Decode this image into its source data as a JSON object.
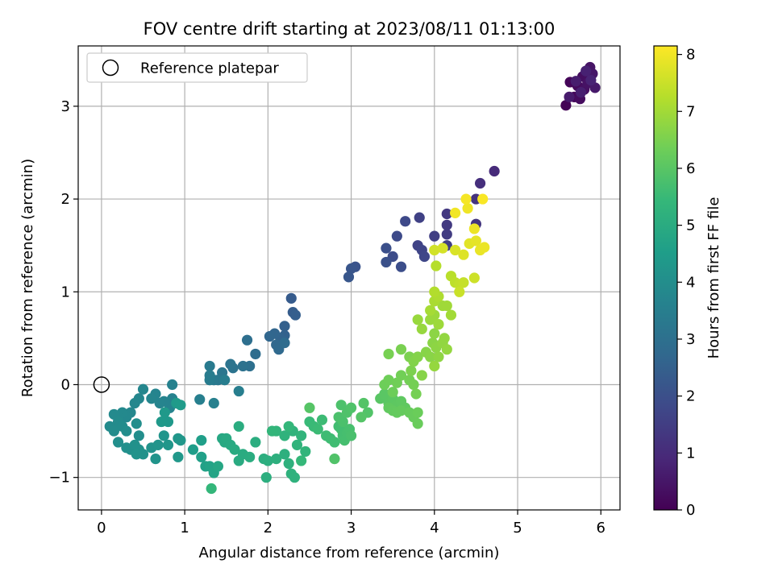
{
  "chart_data": {
    "type": "scatter",
    "title": "FOV centre drift starting at 2023/08/11 01:13:00",
    "xlabel": "Angular distance from reference (arcmin)",
    "ylabel": "Rotation from reference (arcmin)",
    "xlim": [
      -0.28,
      6.23
    ],
    "ylim": [
      -1.35,
      3.65
    ],
    "xticks": [
      0,
      1,
      2,
      3,
      4,
      5,
      6
    ],
    "xtick_labels": [
      "0",
      "1",
      "2",
      "3",
      "4",
      "5",
      "6"
    ],
    "yticks": [
      -1,
      0,
      1,
      2,
      3
    ],
    "ytick_labels": [
      "−1",
      "0",
      "1",
      "2",
      "3"
    ],
    "grid": true,
    "colormap": "viridis",
    "colorbar": {
      "label": "Hours from first FF file",
      "range": [
        0,
        8.15
      ],
      "ticks": [
        0,
        1,
        2,
        3,
        4,
        5,
        6,
        7,
        8
      ],
      "tick_labels": [
        "0",
        "1",
        "2",
        "3",
        "4",
        "5",
        "6",
        "7",
        "8"
      ]
    },
    "legend": {
      "placement": "top-left",
      "entries": [
        "Reference platepar"
      ]
    },
    "reference_point": {
      "x": 0,
      "y": 0
    },
    "points": [
      [
        5.58,
        3.01,
        0.05
      ],
      [
        5.63,
        3.26,
        0.1
      ],
      [
        5.68,
        3.1,
        0.15
      ],
      [
        5.72,
        3.22,
        0.2
      ],
      [
        5.75,
        3.08,
        0.25
      ],
      [
        5.78,
        3.32,
        0.3
      ],
      [
        5.8,
        3.18,
        0.35
      ],
      [
        5.84,
        3.25,
        0.4
      ],
      [
        5.87,
        3.42,
        0.45
      ],
      [
        5.9,
        3.35,
        0.5
      ],
      [
        5.93,
        3.2,
        0.55
      ],
      [
        5.62,
        3.1,
        0.6
      ],
      [
        5.7,
        3.27,
        0.65
      ],
      [
        5.76,
        3.15,
        0.7
      ],
      [
        5.82,
        3.38,
        0.75
      ],
      [
        5.88,
        3.28,
        0.8
      ],
      [
        4.72,
        2.3,
        1.0
      ],
      [
        4.55,
        2.17,
        1.1
      ],
      [
        4.5,
        2.0,
        1.2
      ],
      [
        4.5,
        1.73,
        1.3
      ],
      [
        4.15,
        1.84,
        1.35
      ],
      [
        4.15,
        1.72,
        1.4
      ],
      [
        4.15,
        1.62,
        1.45
      ],
      [
        4.15,
        1.5,
        1.5
      ],
      [
        4.0,
        1.6,
        1.55
      ],
      [
        3.82,
        1.8,
        1.6
      ],
      [
        3.8,
        1.5,
        1.65
      ],
      [
        3.85,
        1.45,
        1.7
      ],
      [
        3.88,
        1.38,
        1.75
      ],
      [
        3.65,
        1.76,
        1.8
      ],
      [
        3.55,
        1.6,
        1.85
      ],
      [
        3.5,
        1.38,
        1.9
      ],
      [
        3.6,
        1.27,
        1.95
      ],
      [
        3.42,
        1.47,
        2.0
      ],
      [
        3.42,
        1.32,
        2.05
      ],
      [
        3.05,
        1.27,
        2.1
      ],
      [
        3.0,
        1.25,
        2.15
      ],
      [
        2.97,
        1.16,
        2.2
      ],
      [
        2.28,
        0.93,
        2.35
      ],
      [
        2.3,
        0.78,
        2.4
      ],
      [
        2.33,
        0.75,
        2.45
      ],
      [
        2.2,
        0.63,
        2.5
      ],
      [
        2.2,
        0.53,
        2.55
      ],
      [
        2.15,
        0.5,
        2.6
      ],
      [
        2.08,
        0.55,
        2.65
      ],
      [
        2.02,
        0.52,
        2.7
      ],
      [
        2.1,
        0.43,
        2.75
      ],
      [
        2.13,
        0.38,
        2.8
      ],
      [
        2.2,
        0.45,
        2.85
      ],
      [
        1.85,
        0.33,
        2.9
      ],
      [
        1.75,
        0.48,
        2.95
      ],
      [
        1.78,
        0.2,
        3.0
      ],
      [
        1.7,
        0.2,
        3.05
      ],
      [
        1.58,
        0.18,
        3.1
      ],
      [
        1.55,
        0.22,
        3.15
      ],
      [
        1.45,
        0.13,
        3.2
      ],
      [
        1.4,
        0.05,
        3.25
      ],
      [
        1.35,
        0.05,
        3.3
      ],
      [
        1.3,
        0.2,
        3.35
      ],
      [
        1.3,
        0.1,
        3.4
      ],
      [
        1.3,
        0.05,
        3.42
      ],
      [
        1.48,
        0.05,
        3.45
      ],
      [
        1.65,
        -0.07,
        3.48
      ],
      [
        1.18,
        -0.16,
        3.52
      ],
      [
        1.35,
        -0.2,
        3.55
      ],
      [
        0.85,
        0.0,
        3.6
      ],
      [
        0.85,
        -0.15,
        3.62
      ],
      [
        0.82,
        -0.25,
        3.64
      ],
      [
        0.75,
        -0.18,
        3.66
      ],
      [
        0.7,
        -0.2,
        3.68
      ],
      [
        0.65,
        -0.1,
        3.7
      ],
      [
        0.6,
        -0.15,
        3.72
      ],
      [
        0.5,
        -0.05,
        3.74
      ],
      [
        0.45,
        -0.15,
        3.76
      ],
      [
        0.4,
        -0.2,
        3.78
      ],
      [
        0.35,
        -0.3,
        3.8
      ],
      [
        0.3,
        -0.35,
        3.82
      ],
      [
        0.25,
        -0.3,
        3.84
      ],
      [
        0.2,
        -0.35,
        3.86
      ],
      [
        0.15,
        -0.32,
        3.88
      ],
      [
        0.2,
        -0.4,
        3.9
      ],
      [
        0.1,
        -0.45,
        3.92
      ],
      [
        0.15,
        -0.5,
        3.94
      ],
      [
        0.25,
        -0.45,
        3.96
      ],
      [
        0.3,
        -0.5,
        3.98
      ],
      [
        0.42,
        -0.42,
        4.0
      ],
      [
        0.45,
        -0.55,
        4.02
      ],
      [
        0.2,
        -0.62,
        4.04
      ],
      [
        0.3,
        -0.68,
        4.06
      ],
      [
        0.35,
        -0.7,
        4.08
      ],
      [
        0.4,
        -0.65,
        4.1
      ],
      [
        0.45,
        -0.7,
        4.12
      ],
      [
        0.5,
        -0.75,
        4.14
      ],
      [
        0.42,
        -0.75,
        4.16
      ],
      [
        0.6,
        -0.68,
        4.18
      ],
      [
        0.68,
        -0.65,
        4.2
      ],
      [
        0.65,
        -0.8,
        4.22
      ],
      [
        0.75,
        -0.55,
        4.24
      ],
      [
        0.8,
        -0.65,
        4.26
      ],
      [
        0.92,
        -0.58,
        4.28
      ],
      [
        0.95,
        -0.6,
        4.3
      ],
      [
        0.92,
        -0.78,
        4.32
      ],
      [
        0.8,
        -0.4,
        4.34
      ],
      [
        0.72,
        -0.4,
        4.36
      ],
      [
        0.76,
        -0.3,
        4.38
      ],
      [
        0.9,
        -0.2,
        4.4
      ],
      [
        0.95,
        -0.22,
        4.42
      ],
      [
        1.1,
        -0.7,
        4.5
      ],
      [
        1.2,
        -0.6,
        4.55
      ],
      [
        1.2,
        -0.78,
        4.6
      ],
      [
        1.25,
        -0.88,
        4.65
      ],
      [
        1.3,
        -0.88,
        4.7
      ],
      [
        1.35,
        -0.95,
        4.75
      ],
      [
        1.4,
        -0.88,
        4.8
      ],
      [
        1.45,
        -0.58,
        4.85
      ],
      [
        1.48,
        -0.62,
        4.9
      ],
      [
        1.5,
        -0.58,
        4.92
      ],
      [
        1.55,
        -0.65,
        4.94
      ],
      [
        1.6,
        -0.7,
        4.96
      ],
      [
        1.65,
        -0.82,
        4.98
      ],
      [
        1.7,
        -0.75,
        5.0
      ],
      [
        1.78,
        -0.78,
        5.02
      ],
      [
        1.65,
        -0.45,
        5.04
      ],
      [
        1.85,
        -0.62,
        5.06
      ],
      [
        1.95,
        -0.8,
        5.08
      ],
      [
        2.0,
        -0.82,
        5.1
      ],
      [
        1.98,
        -1.0,
        5.12
      ],
      [
        2.1,
        -0.8,
        5.14
      ],
      [
        2.2,
        -0.75,
        5.16
      ],
      [
        2.25,
        -0.85,
        5.18
      ],
      [
        2.28,
        -0.96,
        5.2
      ],
      [
        2.32,
        -1.0,
        5.22
      ],
      [
        2.2,
        -0.55,
        5.24
      ],
      [
        2.3,
        -0.5,
        5.26
      ],
      [
        2.35,
        -0.65,
        5.28
      ],
      [
        2.4,
        -0.55,
        5.3
      ],
      [
        2.45,
        -0.72,
        5.32
      ],
      [
        2.1,
        -0.5,
        5.34
      ],
      [
        2.05,
        -0.5,
        5.36
      ],
      [
        2.25,
        -0.45,
        5.38
      ],
      [
        1.32,
        -1.12,
        5.4
      ],
      [
        2.4,
        -0.82,
        5.42
      ],
      [
        2.5,
        -0.4,
        5.5
      ],
      [
        2.55,
        -0.45,
        5.52
      ],
      [
        2.6,
        -0.48,
        5.54
      ],
      [
        2.65,
        -0.38,
        5.56
      ],
      [
        2.7,
        -0.55,
        5.58
      ],
      [
        2.75,
        -0.58,
        5.6
      ],
      [
        2.8,
        -0.62,
        5.62
      ],
      [
        2.85,
        -0.45,
        5.64
      ],
      [
        2.88,
        -0.48,
        5.66
      ],
      [
        2.9,
        -0.55,
        5.68
      ],
      [
        2.92,
        -0.6,
        5.7
      ],
      [
        2.95,
        -0.52,
        5.72
      ],
      [
        2.98,
        -0.48,
        5.74
      ],
      [
        3.0,
        -0.55,
        5.76
      ],
      [
        2.9,
        -0.4,
        5.78
      ],
      [
        2.85,
        -0.35,
        5.8
      ],
      [
        2.88,
        -0.22,
        5.82
      ],
      [
        2.95,
        -0.3,
        5.84
      ],
      [
        3.0,
        -0.25,
        5.86
      ],
      [
        2.8,
        -0.8,
        5.88
      ],
      [
        3.2,
        -0.3,
        5.9
      ],
      [
        3.15,
        -0.2,
        5.92
      ],
      [
        3.12,
        -0.35,
        5.94
      ],
      [
        2.5,
        -0.25,
        5.96
      ],
      [
        3.35,
        -0.15,
        6.0
      ],
      [
        3.4,
        -0.1,
        6.02
      ],
      [
        3.45,
        -0.2,
        6.04
      ],
      [
        3.5,
        -0.15,
        6.06
      ],
      [
        3.55,
        -0.22,
        6.08
      ],
      [
        3.6,
        -0.18,
        6.1
      ],
      [
        3.65,
        -0.25,
        6.12
      ],
      [
        3.45,
        -0.25,
        6.14
      ],
      [
        3.5,
        -0.28,
        6.16
      ],
      [
        3.55,
        -0.3,
        6.18
      ],
      [
        3.6,
        -0.28,
        6.2
      ],
      [
        3.7,
        -0.3,
        6.22
      ],
      [
        3.75,
        -0.35,
        6.24
      ],
      [
        3.8,
        -0.42,
        6.26
      ],
      [
        3.8,
        -0.3,
        6.28
      ],
      [
        3.5,
        -0.08,
        6.3
      ],
      [
        3.4,
        0.0,
        6.32
      ],
      [
        3.45,
        0.05,
        6.34
      ],
      [
        3.55,
        0.02,
        6.36
      ],
      [
        3.6,
        0.1,
        6.38
      ],
      [
        3.7,
        0.05,
        6.4
      ],
      [
        3.75,
        0.0,
        6.42
      ],
      [
        3.78,
        -0.1,
        6.44
      ],
      [
        3.45,
        0.33,
        6.46
      ],
      [
        3.6,
        0.38,
        6.48
      ],
      [
        3.7,
        0.3,
        6.5
      ],
      [
        3.72,
        0.15,
        6.52
      ],
      [
        3.75,
        0.25,
        6.6
      ],
      [
        3.8,
        0.3,
        6.62
      ],
      [
        3.85,
        0.1,
        6.64
      ],
      [
        3.9,
        0.35,
        6.66
      ],
      [
        3.95,
        0.3,
        6.68
      ],
      [
        3.98,
        0.45,
        6.7
      ],
      [
        4.0,
        0.55,
        6.72
      ],
      [
        4.02,
        0.4,
        6.74
      ],
      [
        4.05,
        0.3,
        6.76
      ],
      [
        4.1,
        0.45,
        6.78
      ],
      [
        4.12,
        0.5,
        6.8
      ],
      [
        4.15,
        0.38,
        6.82
      ],
      [
        4.0,
        0.2,
        6.84
      ],
      [
        3.85,
        0.6,
        6.86
      ],
      [
        3.8,
        0.7,
        6.88
      ],
      [
        3.95,
        0.7,
        6.9
      ],
      [
        4.0,
        0.75,
        6.92
      ],
      [
        4.05,
        0.65,
        6.94
      ],
      [
        4.1,
        0.85,
        6.96
      ],
      [
        4.15,
        0.85,
        6.98
      ],
      [
        4.2,
        0.75,
        7.0
      ],
      [
        3.95,
        0.8,
        7.05
      ],
      [
        4.0,
        0.9,
        7.1
      ],
      [
        4.05,
        0.95,
        7.15
      ],
      [
        4.0,
        1.0,
        7.2
      ],
      [
        4.02,
        1.28,
        7.25
      ],
      [
        4.2,
        1.17,
        7.3
      ],
      [
        4.25,
        1.1,
        7.35
      ],
      [
        4.3,
        1.08,
        7.4
      ],
      [
        4.35,
        1.1,
        7.45
      ],
      [
        4.3,
        1.0,
        7.5
      ],
      [
        4.48,
        1.15,
        7.55
      ],
      [
        4.0,
        1.45,
        7.6
      ],
      [
        4.1,
        1.47,
        7.65
      ],
      [
        4.25,
        1.45,
        7.7
      ],
      [
        4.35,
        1.4,
        7.75
      ],
      [
        4.42,
        1.52,
        7.8
      ],
      [
        4.5,
        1.55,
        7.85
      ],
      [
        4.55,
        1.45,
        7.9
      ],
      [
        4.6,
        1.48,
        7.92
      ],
      [
        4.48,
        1.68,
        7.95
      ],
      [
        4.4,
        1.9,
        7.98
      ],
      [
        4.25,
        1.85,
        8.0
      ],
      [
        4.38,
        2.0,
        8.05
      ],
      [
        4.58,
        2.0,
        8.1
      ]
    ]
  }
}
